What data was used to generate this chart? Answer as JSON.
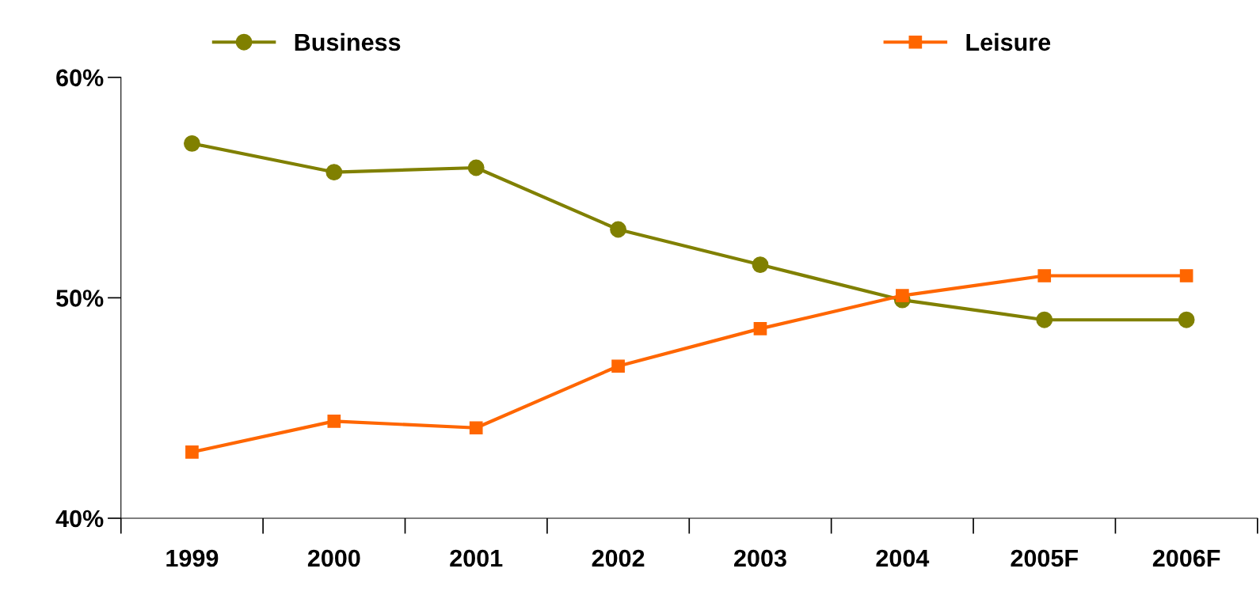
{
  "chart_data": {
    "type": "line",
    "categories": [
      "1999",
      "2000",
      "2001",
      "2002",
      "2003",
      "2004",
      "2005F",
      "2006F"
    ],
    "series": [
      {
        "name": "Business",
        "color": "#808000",
        "marker": "circle",
        "values": [
          57.0,
          55.7,
          55.9,
          53.1,
          51.5,
          49.9,
          49.0,
          49.0
        ]
      },
      {
        "name": "Leisure",
        "color": "#ff6600",
        "marker": "square",
        "values": [
          43.0,
          44.4,
          44.1,
          46.9,
          48.6,
          50.1,
          51.0,
          51.0
        ]
      }
    ],
    "ylim": [
      40,
      60
    ],
    "yticks": [
      {
        "value": 40,
        "label": "40%"
      },
      {
        "value": 50,
        "label": "50%"
      },
      {
        "value": 60,
        "label": "60%"
      }
    ],
    "grid": false,
    "legend": "top",
    "line_style": "solid"
  }
}
